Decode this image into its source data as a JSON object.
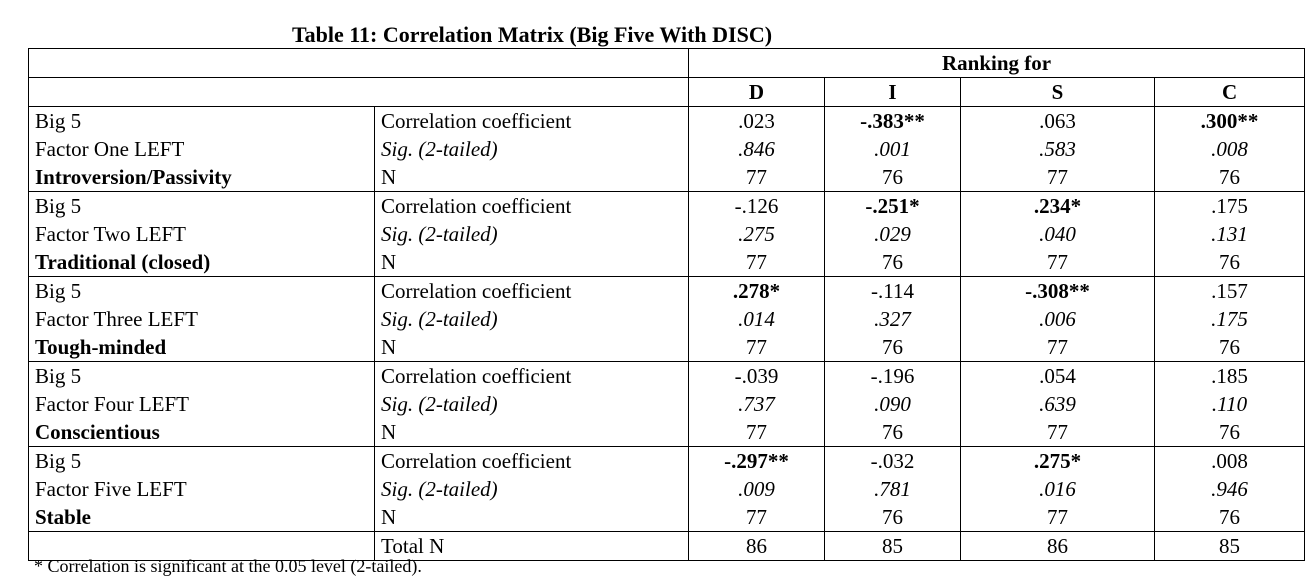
{
  "title": "Table 11: Correlation Matrix (Big Five With DISC)",
  "ranking_label": "Ranking for",
  "columns": [
    "D",
    "I",
    "S",
    "C"
  ],
  "stat_labels": [
    "Correlation coefficient",
    "Sig. (2-tailed)",
    "N"
  ],
  "factors": [
    {
      "line1": "Big 5",
      "line2": "Factor One LEFT",
      "line3": "Introversion/Passivity",
      "values": [
        {
          "r": ".023",
          "r_bold": false,
          "sig": ".846",
          "n": "77"
        },
        {
          "r": "-.383**",
          "r_bold": true,
          "sig": ".001",
          "n": "76"
        },
        {
          "r": ".063",
          "r_bold": false,
          "sig": ".583",
          "n": "77"
        },
        {
          "r": ".300**",
          "r_bold": true,
          "sig": ".008",
          "n": "76"
        }
      ]
    },
    {
      "line1": "Big 5",
      "line2": "Factor Two LEFT",
      "line3": "Traditional (closed)",
      "values": [
        {
          "r": "-.126",
          "r_bold": false,
          "sig": ".275",
          "n": "77"
        },
        {
          "r": "-.251*",
          "r_bold": true,
          "sig": ".029",
          "n": "76"
        },
        {
          "r": ".234*",
          "r_bold": true,
          "sig": ".040",
          "n": "77"
        },
        {
          "r": ".175",
          "r_bold": false,
          "sig": ".131",
          "n": "76"
        }
      ]
    },
    {
      "line1": "Big 5",
      "line2": "Factor Three LEFT",
      "line3": "Tough-minded",
      "values": [
        {
          "r": ".278*",
          "r_bold": true,
          "sig": ".014",
          "n": "77"
        },
        {
          "r": "-.114",
          "r_bold": false,
          "sig": ".327",
          "n": "76"
        },
        {
          "r": "-.308**",
          "r_bold": true,
          "sig": ".006",
          "n": "77"
        },
        {
          "r": ".157",
          "r_bold": false,
          "sig": ".175",
          "n": "76"
        }
      ]
    },
    {
      "line1": "Big 5",
      "line2": "Factor Four LEFT",
      "line3": "Conscientious",
      "values": [
        {
          "r": "-.039",
          "r_bold": false,
          "sig": ".737",
          "n": "77"
        },
        {
          "r": "-.196",
          "r_bold": false,
          "sig": ".090",
          "n": "76"
        },
        {
          "r": ".054",
          "r_bold": false,
          "sig": ".639",
          "n": "77"
        },
        {
          "r": ".185",
          "r_bold": false,
          "sig": ".110",
          "n": "76"
        }
      ]
    },
    {
      "line1": "Big 5",
      "line2": "Factor Five LEFT",
      "line3": "Stable",
      "values": [
        {
          "r": "-.297**",
          "r_bold": true,
          "sig": ".009",
          "n": "77"
        },
        {
          "r": "-.032",
          "r_bold": false,
          "sig": ".781",
          "n": "76"
        },
        {
          "r": ".275*",
          "r_bold": true,
          "sig": ".016",
          "n": "77"
        },
        {
          "r": ".008",
          "r_bold": false,
          "sig": ".946",
          "n": "76"
        }
      ]
    }
  ],
  "total_n": {
    "label": "Total N",
    "values": [
      "86",
      "85",
      "86",
      "85"
    ]
  },
  "footnote": "* Correlation is significant at the 0.05 level (2-tailed)."
}
